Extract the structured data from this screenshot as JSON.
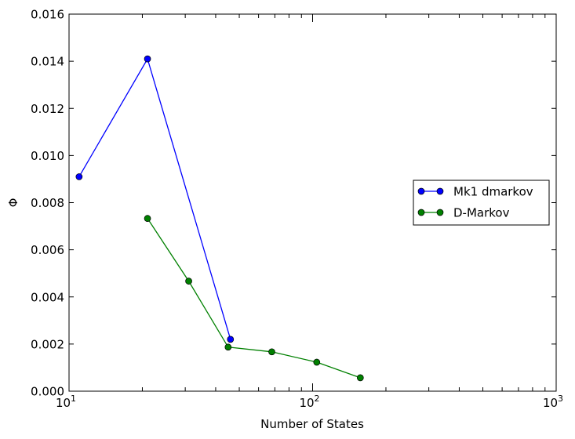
{
  "chart_data": {
    "type": "line",
    "xscale": "log",
    "xlim": [
      10,
      1000
    ],
    "ylim": [
      0.0,
      0.016
    ],
    "xlabel": "Number of States",
    "ylabel": "Φ",
    "yticks": [
      "0.000",
      "0.002",
      "0.004",
      "0.006",
      "0.008",
      "0.010",
      "0.012",
      "0.014",
      "0.016"
    ],
    "xticks": [
      {
        "value": 10,
        "base": "10",
        "exp": "1"
      },
      {
        "value": 100,
        "base": "10",
        "exp": "2"
      },
      {
        "value": 1000,
        "base": "10",
        "exp": "3"
      }
    ],
    "legend_position": "center-right",
    "series": [
      {
        "name": "Mk1 dmarkov",
        "color": "#0000ff",
        "x": [
          11,
          21,
          46
        ],
        "y": [
          0.0091,
          0.0141,
          0.0022
        ]
      },
      {
        "name": "D-Markov",
        "color": "#008000",
        "x": [
          21,
          31,
          45,
          68,
          104,
          157
        ],
        "y": [
          0.00733,
          0.00467,
          0.00187,
          0.00167,
          0.00123,
          0.00057
        ]
      }
    ]
  }
}
